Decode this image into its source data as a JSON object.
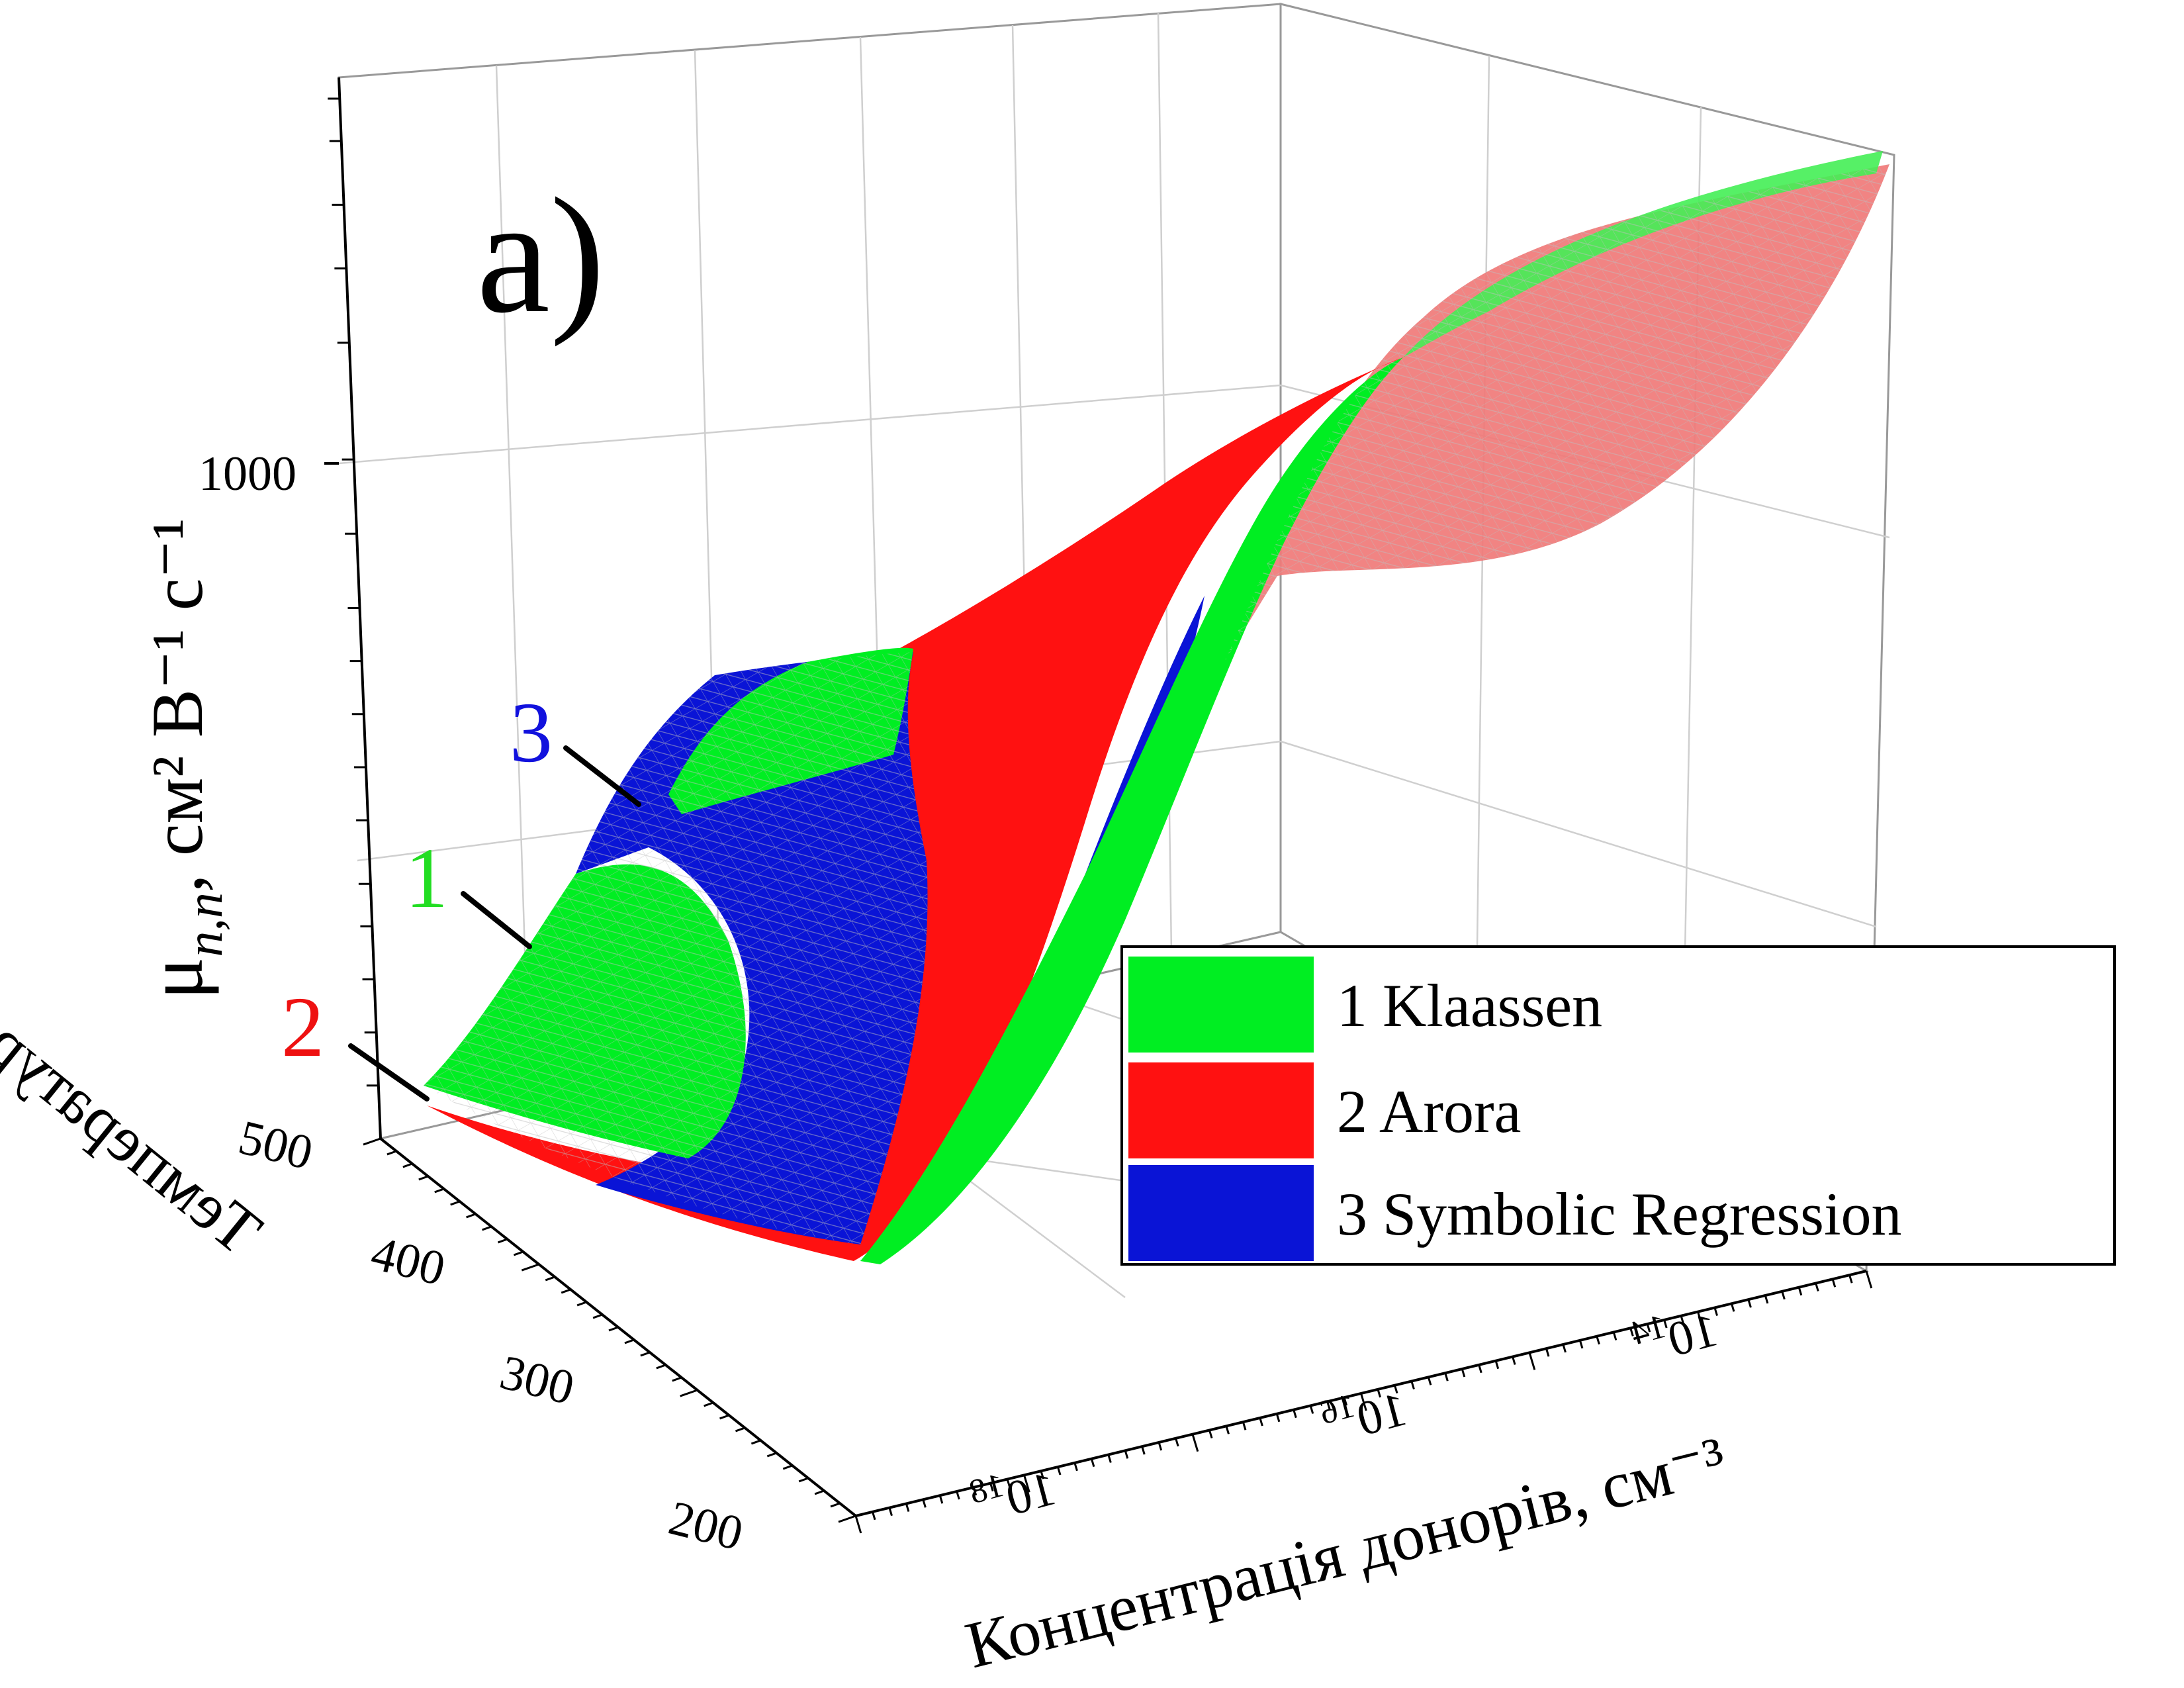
{
  "panel_label": "a)",
  "colors": {
    "klaassen": "#00ee22",
    "arora": "#ff1111",
    "arora_translucent": "#f07a78",
    "symbolic": "#0a14d6",
    "grid": "#cfcfcf",
    "axis": "#000000"
  },
  "annotations": [
    {
      "label": "1",
      "color": "#22dd22"
    },
    {
      "label": "2",
      "color": "#ee1111"
    },
    {
      "label": "3",
      "color": "#1111dd"
    }
  ],
  "chart_data": {
    "type": "surface3d",
    "title": "",
    "zlabel_main": "μ",
    "zlabel_sub": "n,n",
    "zlabel_units": ",  см² В⁻¹ с⁻¹",
    "xlabel": "Концентрація донорів, см⁻³",
    "ylabel": "Температура, К",
    "x_scale": "log",
    "z_scale": "log",
    "x_ticks": [
      {
        "value": 1e+18,
        "base": "10",
        "exp": "18"
      },
      {
        "value": 1e+16,
        "base": "10",
        "exp": "16"
      },
      {
        "value": 100000000000000.0,
        "base": "10",
        "exp": "14"
      }
    ],
    "y_ticks": [
      "500",
      "400",
      "300",
      "200"
    ],
    "z_ticks": [
      "1000"
    ],
    "grid": true,
    "legend_position": "bottom-right",
    "series": [
      {
        "name": "1 Klaassen",
        "color": "#00ee22"
      },
      {
        "name": "2 Arora",
        "color": "#ff1111"
      },
      {
        "name": "3 Symbolic Regression",
        "color": "#0a14d6"
      }
    ]
  }
}
